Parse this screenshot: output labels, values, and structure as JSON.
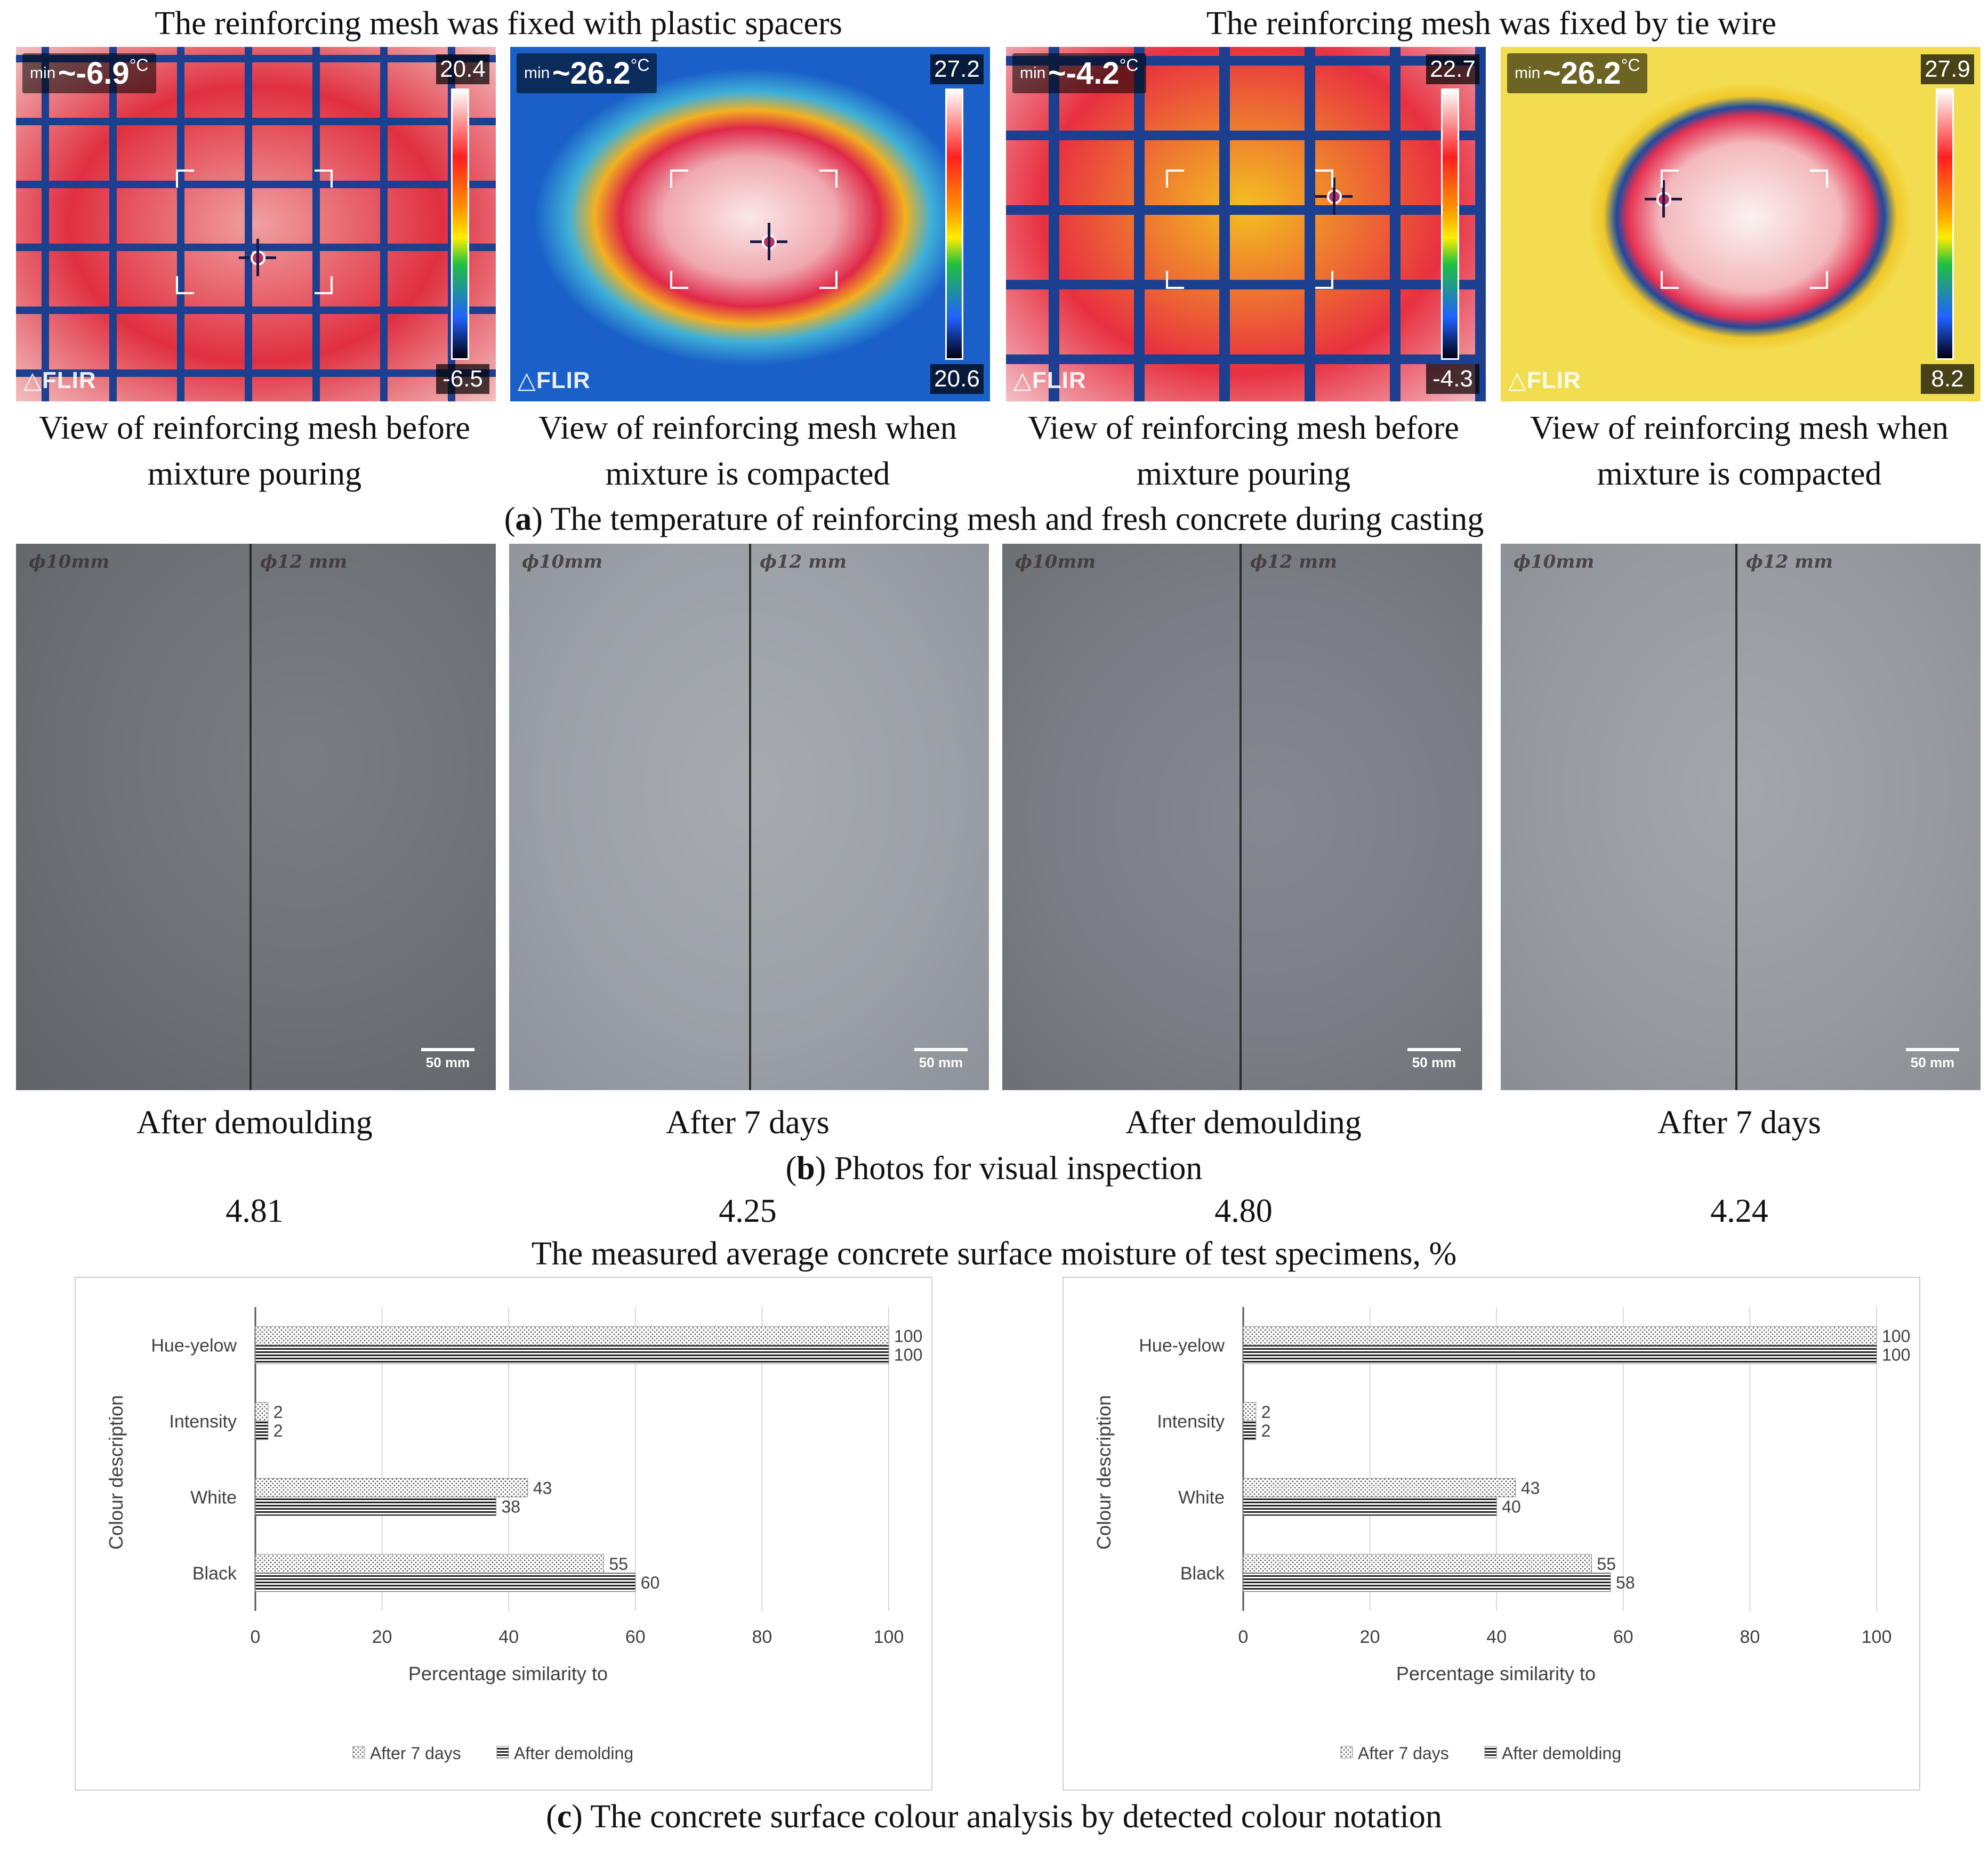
{
  "section_a": {
    "group_left_title": "The reinforcing mesh was fixed with plastic spacers",
    "group_right_title": "The reinforcing mesh was fixed by tie wire",
    "images": [
      {
        "min_label": "min",
        "min_value": "~-6.9",
        "unit": "°C",
        "scale_max": "20.4",
        "scale_min": "-6.5",
        "logo": "FLIR",
        "caption_line1": "View of reinforcing mesh before",
        "caption_line2": "mixture pouring"
      },
      {
        "min_label": "min",
        "min_value": "~26.2",
        "unit": "°C",
        "scale_max": "27.2",
        "scale_min": "20.6",
        "logo": "FLIR",
        "caption_line1": "View of reinforcing mesh when",
        "caption_line2": "mixture is compacted"
      },
      {
        "min_label": "min",
        "min_value": "~-4.2",
        "unit": "°C",
        "scale_max": "22.7",
        "scale_min": "-4.3",
        "logo": "FLIR",
        "caption_line1": "View of reinforcing mesh before",
        "caption_line2": "mixture pouring"
      },
      {
        "min_label": "min",
        "min_value": "~26.2",
        "unit": "°C",
        "scale_max": "27.9",
        "scale_min": "8.2",
        "logo": "FLIR",
        "caption_line1": "View of reinforcing mesh when",
        "caption_line2": "mixture is compacted"
      }
    ],
    "panel_letter": "a",
    "panel_title": " The temperature of reinforcing mesh and fresh concrete during casting"
  },
  "section_b": {
    "photos": [
      {
        "label_left": "ϕ10mm",
        "label_right": "ϕ12 mm",
        "scale_label": "50 mm",
        "caption": "After demoulding",
        "moisture": "4.81"
      },
      {
        "label_left": "ϕ10mm",
        "label_right": "ϕ12 mm",
        "scale_label": "50 mm",
        "caption": "After 7 days",
        "moisture": "4.25"
      },
      {
        "label_left": "ϕ10mm",
        "label_right": "ϕ12 mm",
        "scale_label": "50 mm",
        "caption": "After demoulding",
        "moisture": "4.80"
      },
      {
        "label_left": "ϕ10mm",
        "label_right": "ϕ12 mm",
        "scale_label": "50 mm",
        "caption": "After 7 days",
        "moisture": "4.24"
      }
    ],
    "panel_letter": "b",
    "panel_title": " Photos for visual inspection",
    "moisture_caption": "The measured average concrete surface moisture of test specimens, %"
  },
  "section_c": {
    "panel_letter": "c",
    "panel_title": " The concrete surface colour analysis by detected colour notation"
  },
  "chart_data": [
    {
      "type": "bar",
      "orientation": "horizontal",
      "categories": [
        "Hue-yelow",
        "Intensity",
        "White",
        "Black"
      ],
      "series": [
        {
          "name": "After 7 days",
          "values": [
            100,
            2,
            43,
            55
          ],
          "pattern": "dotted"
        },
        {
          "name": "After demolding",
          "values": [
            100,
            2,
            38,
            60
          ],
          "pattern": "horizontal-lines"
        }
      ],
      "xlabel": "Percentage similarity to",
      "ylabel": "Colour description",
      "xlim": [
        0,
        100
      ],
      "xticks": [
        0,
        20,
        40,
        60,
        80,
        100
      ],
      "grid": true,
      "legend_position": "bottom"
    },
    {
      "type": "bar",
      "orientation": "horizontal",
      "categories": [
        "Hue-yelow",
        "Intensity",
        "White",
        "Black"
      ],
      "series": [
        {
          "name": "After 7 days",
          "values": [
            100,
            2,
            43,
            55
          ],
          "pattern": "dotted"
        },
        {
          "name": "After demolding",
          "values": [
            100,
            2,
            40,
            58
          ],
          "pattern": "horizontal-lines"
        }
      ],
      "xlabel": "Percentage similarity to",
      "ylabel": "Colour description",
      "xlim": [
        0,
        100
      ],
      "xticks": [
        0,
        20,
        40,
        60,
        80,
        100
      ],
      "grid": true,
      "legend_position": "bottom"
    }
  ]
}
